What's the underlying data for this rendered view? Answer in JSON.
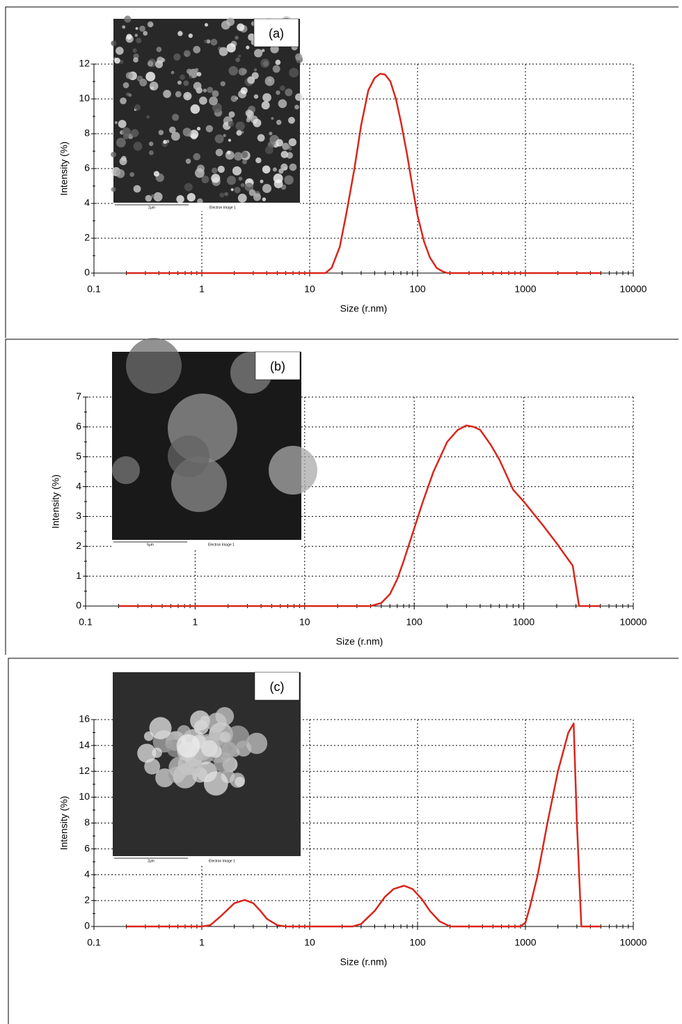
{
  "chart_data": [
    {
      "type": "line",
      "panel_label": "(a)",
      "x_label": "Size (r.nm)",
      "y_label": "Intensity (%)",
      "scale_label": "2μm",
      "image_label": "Electron Image 1",
      "xscale": "log",
      "grid": true,
      "xlim": [
        0.1,
        10000
      ],
      "xticks": [
        0.1,
        1,
        10,
        100,
        1000,
        10000
      ],
      "ylim": [
        0,
        12
      ],
      "yticks": [
        0,
        2,
        4,
        6,
        8,
        10,
        12
      ],
      "x": [
        0.2,
        1,
        10,
        14,
        16,
        19,
        22,
        26,
        30,
        35,
        40,
        45,
        50,
        56,
        63,
        70,
        80,
        90,
        100,
        115,
        130,
        150,
        170,
        190,
        200,
        1000,
        5000
      ],
      "series": [
        {
          "color": "#d9261c",
          "values": [
            0,
            0,
            0,
            0,
            0.3,
            1.5,
            3.5,
            6,
            8.5,
            10.5,
            11.2,
            11.45,
            11.4,
            11,
            10,
            8.7,
            6.8,
            4.9,
            3.3,
            1.8,
            0.9,
            0.3,
            0.1,
            0,
            0,
            0,
            0
          ]
        }
      ]
    },
    {
      "type": "line",
      "panel_label": "(b)",
      "x_label": "Size (r.nm)",
      "y_label": "Intensity (%)",
      "scale_label": "5μm",
      "image_label": "Electron Image 1",
      "xscale": "log",
      "grid": true,
      "xlim": [
        0.1,
        10000
      ],
      "xticks": [
        0.1,
        1,
        10,
        100,
        1000,
        10000
      ],
      "ylim": [
        0,
        7
      ],
      "yticks": [
        0,
        1,
        2,
        3,
        4,
        5,
        6,
        7
      ],
      "x": [
        0.2,
        1,
        10,
        40,
        50,
        60,
        70,
        80,
        100,
        120,
        150,
        200,
        250,
        300,
        350,
        400,
        500,
        600,
        800,
        1000,
        1500,
        2000,
        2500,
        2800,
        3200,
        3500,
        5000
      ],
      "series": [
        {
          "color": "#d9261c",
          "values": [
            0,
            0,
            0,
            0,
            0.1,
            0.4,
            0.9,
            1.5,
            2.6,
            3.5,
            4.5,
            5.5,
            5.9,
            6.05,
            6.0,
            5.9,
            5.4,
            4.9,
            3.9,
            3.5,
            2.7,
            2.1,
            1.6,
            1.35,
            0,
            0,
            0
          ]
        }
      ]
    },
    {
      "type": "line",
      "panel_label": "(c)",
      "x_label": "Size (r.nm)",
      "y_label": "Intensity (%)",
      "scale_label": "2μm",
      "image_label": "Electron Image 1",
      "xscale": "log",
      "grid": true,
      "xlim": [
        0.1,
        10000
      ],
      "xticks": [
        0.1,
        1,
        10,
        100,
        1000,
        10000
      ],
      "ylim": [
        0,
        16
      ],
      "yticks": [
        0,
        2,
        4,
        6,
        8,
        10,
        12,
        14,
        16
      ],
      "x": [
        0.2,
        1,
        1.2,
        1.5,
        2,
        2.5,
        3,
        3.5,
        4,
        5,
        6,
        10,
        25,
        30,
        40,
        50,
        60,
        75,
        90,
        110,
        130,
        160,
        200,
        500,
        900,
        1000,
        1100,
        1300,
        1600,
        2000,
        2500,
        2800,
        3000,
        3300,
        5000
      ],
      "series": [
        {
          "color": "#d9261c",
          "values": [
            0,
            0,
            0.1,
            0.8,
            1.8,
            2.05,
            1.8,
            1.2,
            0.6,
            0.1,
            0,
            0,
            0,
            0.2,
            1.2,
            2.3,
            2.9,
            3.15,
            2.9,
            2.1,
            1.2,
            0.4,
            0,
            0,
            0,
            0.3,
            1.5,
            4,
            8,
            12,
            15,
            15.7,
            8,
            0,
            0
          ]
        }
      ]
    }
  ]
}
